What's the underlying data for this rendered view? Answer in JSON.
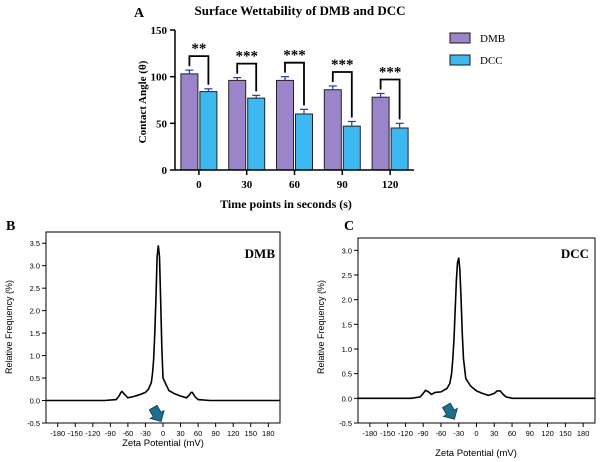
{
  "colors": {
    "dmb": "#9B84C9",
    "dcc": "#3DB8F0",
    "axis": "#000000",
    "curve": "#000000",
    "arrow": "#1F6E8C"
  },
  "chart_data": [
    {
      "panel_label": "A",
      "type": "bar",
      "title": "Surface Wettability of DMB and DCC",
      "xlabel": "Time points in seconds (s)",
      "ylabel": "Contact Angle (θ)",
      "ylim": [
        0,
        150
      ],
      "yticks": [
        "0",
        "50",
        "100",
        "150"
      ],
      "categories": [
        "0",
        "30",
        "60",
        "90",
        "120"
      ],
      "series": [
        {
          "name": "DMB",
          "values": [
            103,
            96,
            96,
            86,
            78
          ],
          "errors": [
            4,
            3,
            4,
            4,
            4
          ]
        },
        {
          "name": "DCC",
          "values": [
            84,
            77,
            60,
            47,
            45
          ],
          "errors": [
            3,
            3,
            5,
            5,
            5
          ]
        }
      ],
      "significance": [
        "**",
        "***",
        "***",
        "***",
        "***"
      ],
      "legend_position": "right"
    },
    {
      "panel_label": "B",
      "type": "line",
      "inset_label": "DMB",
      "xlabel": "Zeta Potential (mV)",
      "ylabel": "Relative Frequency (%)",
      "xlim": [
        -200,
        200
      ],
      "ylim": [
        -0.5,
        3.75
      ],
      "xticks": [
        "-180",
        "-150",
        "-120",
        "-90",
        "-60",
        "-30",
        "0",
        "30",
        "60",
        "90",
        "120",
        "150",
        "180"
      ],
      "yticks": [
        "-0.5",
        "0.0",
        "0.5",
        "1.0",
        "1.5",
        "2.0",
        "2.5",
        "3.0",
        "3.5"
      ],
      "x": [
        -200,
        -100,
        -80,
        -75,
        -72,
        -70,
        -66,
        -60,
        -50,
        -40,
        -30,
        -25,
        -20,
        -18,
        -16,
        -14,
        -12,
        -10,
        -8,
        -6,
        -4,
        -2,
        0,
        10,
        20,
        30,
        40,
        45,
        48,
        50,
        55,
        60,
        80,
        100,
        200
      ],
      "y": [
        0,
        0,
        0.02,
        0.1,
        0.18,
        0.2,
        0.14,
        0.06,
        0.09,
        0.13,
        0.18,
        0.25,
        0.4,
        0.6,
        0.9,
        1.5,
        2.3,
        3.2,
        3.45,
        3.2,
        2.2,
        1.2,
        0.5,
        0.22,
        0.15,
        0.1,
        0.06,
        0.12,
        0.18,
        0.18,
        0.08,
        0.02,
        0,
        0,
        0
      ],
      "arrow_x": -10
    },
    {
      "panel_label": "C",
      "type": "line",
      "inset_label": "DCC",
      "xlabel": "Zeta Potential (mV)",
      "ylabel": "Relative Frequency (%)",
      "xlim": [
        -200,
        200
      ],
      "ylim": [
        -0.5,
        3.25
      ],
      "xticks": [
        "-180",
        "-150",
        "-120",
        "-90",
        "-60",
        "-30",
        "0",
        "30",
        "60",
        "90",
        "120",
        "150",
        "180"
      ],
      "yticks": [
        "-0.5",
        "0.0",
        "0.5",
        "1.0",
        "1.5",
        "2.0",
        "2.5",
        "3.0"
      ],
      "x": [
        -200,
        -110,
        -95,
        -90,
        -86,
        -82,
        -76,
        -70,
        -60,
        -50,
        -45,
        -42,
        -40,
        -38,
        -36,
        -34,
        -32,
        -30,
        -28,
        -26,
        -24,
        -22,
        -18,
        -10,
        0,
        10,
        20,
        30,
        35,
        40,
        45,
        50,
        60,
        100,
        200
      ],
      "y": [
        0,
        0,
        0.03,
        0.1,
        0.16,
        0.14,
        0.08,
        0.12,
        0.13,
        0.2,
        0.3,
        0.5,
        0.8,
        1.2,
        1.8,
        2.4,
        2.75,
        2.85,
        2.6,
        2.0,
        1.3,
        0.8,
        0.4,
        0.25,
        0.15,
        0.1,
        0.06,
        0.1,
        0.15,
        0.15,
        0.08,
        0.03,
        0,
        0,
        0
      ],
      "arrow_x": -44
    }
  ]
}
